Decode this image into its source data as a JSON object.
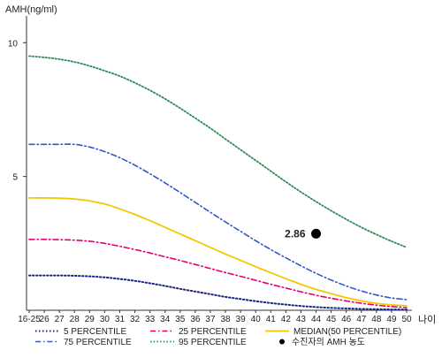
{
  "chart_data": {
    "type": "line",
    "ylabel": "AMH(ng/ml)",
    "xlabel_unit": "나이",
    "ylim": [
      0,
      11
    ],
    "yticks": [
      5,
      10
    ],
    "categories": [
      "16-25",
      "26",
      "27",
      "28",
      "29",
      "30",
      "31",
      "32",
      "33",
      "34",
      "35",
      "36",
      "37",
      "38",
      "39",
      "40",
      "41",
      "42",
      "43",
      "44",
      "45",
      "46",
      "47",
      "48",
      "49",
      "50"
    ],
    "series": [
      {
        "name": "5 PERCENTILE",
        "color": "#1a237e",
        "dash": "1.5,2.5",
        "width": 2,
        "values": [
          1.3,
          1.3,
          1.3,
          1.29,
          1.27,
          1.23,
          1.17,
          1.1,
          1.01,
          0.91,
          0.8,
          0.7,
          0.6,
          0.5,
          0.42,
          0.34,
          0.27,
          0.21,
          0.16,
          0.12,
          0.09,
          0.07,
          0.05,
          0.04,
          0.03,
          0.03
        ]
      },
      {
        "name": "25 PERCENTILE",
        "color": "#e6006e",
        "dash": "6,3,1.5,3",
        "width": 1.6,
        "values": [
          2.65,
          2.65,
          2.64,
          2.62,
          2.58,
          2.5,
          2.39,
          2.27,
          2.14,
          2.0,
          1.86,
          1.71,
          1.56,
          1.41,
          1.27,
          1.12,
          0.97,
          0.83,
          0.69,
          0.56,
          0.45,
          0.35,
          0.26,
          0.19,
          0.14,
          0.1
        ]
      },
      {
        "name": "MEDIAN(50 PERCENTILE)",
        "color": "#f2c800",
        "dash": "",
        "width": 1.8,
        "values": [
          4.2,
          4.2,
          4.19,
          4.16,
          4.09,
          3.97,
          3.79,
          3.58,
          3.35,
          3.1,
          2.85,
          2.6,
          2.35,
          2.1,
          1.87,
          1.63,
          1.4,
          1.18,
          0.97,
          0.78,
          0.62,
          0.47,
          0.35,
          0.26,
          0.2,
          0.17
        ]
      },
      {
        "name": "75 PERCENTILE",
        "color": "#3355cc",
        "dash": "6,3,1.5,3",
        "width": 1.6,
        "values": [
          6.2,
          6.2,
          6.2,
          6.2,
          6.1,
          5.93,
          5.7,
          5.42,
          5.1,
          4.76,
          4.4,
          4.03,
          3.66,
          3.3,
          2.95,
          2.6,
          2.27,
          1.96,
          1.66,
          1.38,
          1.13,
          0.91,
          0.72,
          0.57,
          0.46,
          0.4
        ]
      },
      {
        "name": "95 PERCENTILE",
        "color": "#2e8b57",
        "dash": "1.5,2.2",
        "width": 1.8,
        "values": [
          9.5,
          9.45,
          9.38,
          9.28,
          9.13,
          8.95,
          8.75,
          8.5,
          8.22,
          7.9,
          7.55,
          7.18,
          6.8,
          6.4,
          6.0,
          5.6,
          5.2,
          4.8,
          4.42,
          4.06,
          3.72,
          3.4,
          3.1,
          2.83,
          2.58,
          2.35
        ]
      }
    ],
    "marker": {
      "name": "수진자의 AMH 농도",
      "category": "44",
      "value": 2.86,
      "label": "2.86",
      "color": "#000000"
    },
    "legend_position": "bottom",
    "grid": false
  }
}
